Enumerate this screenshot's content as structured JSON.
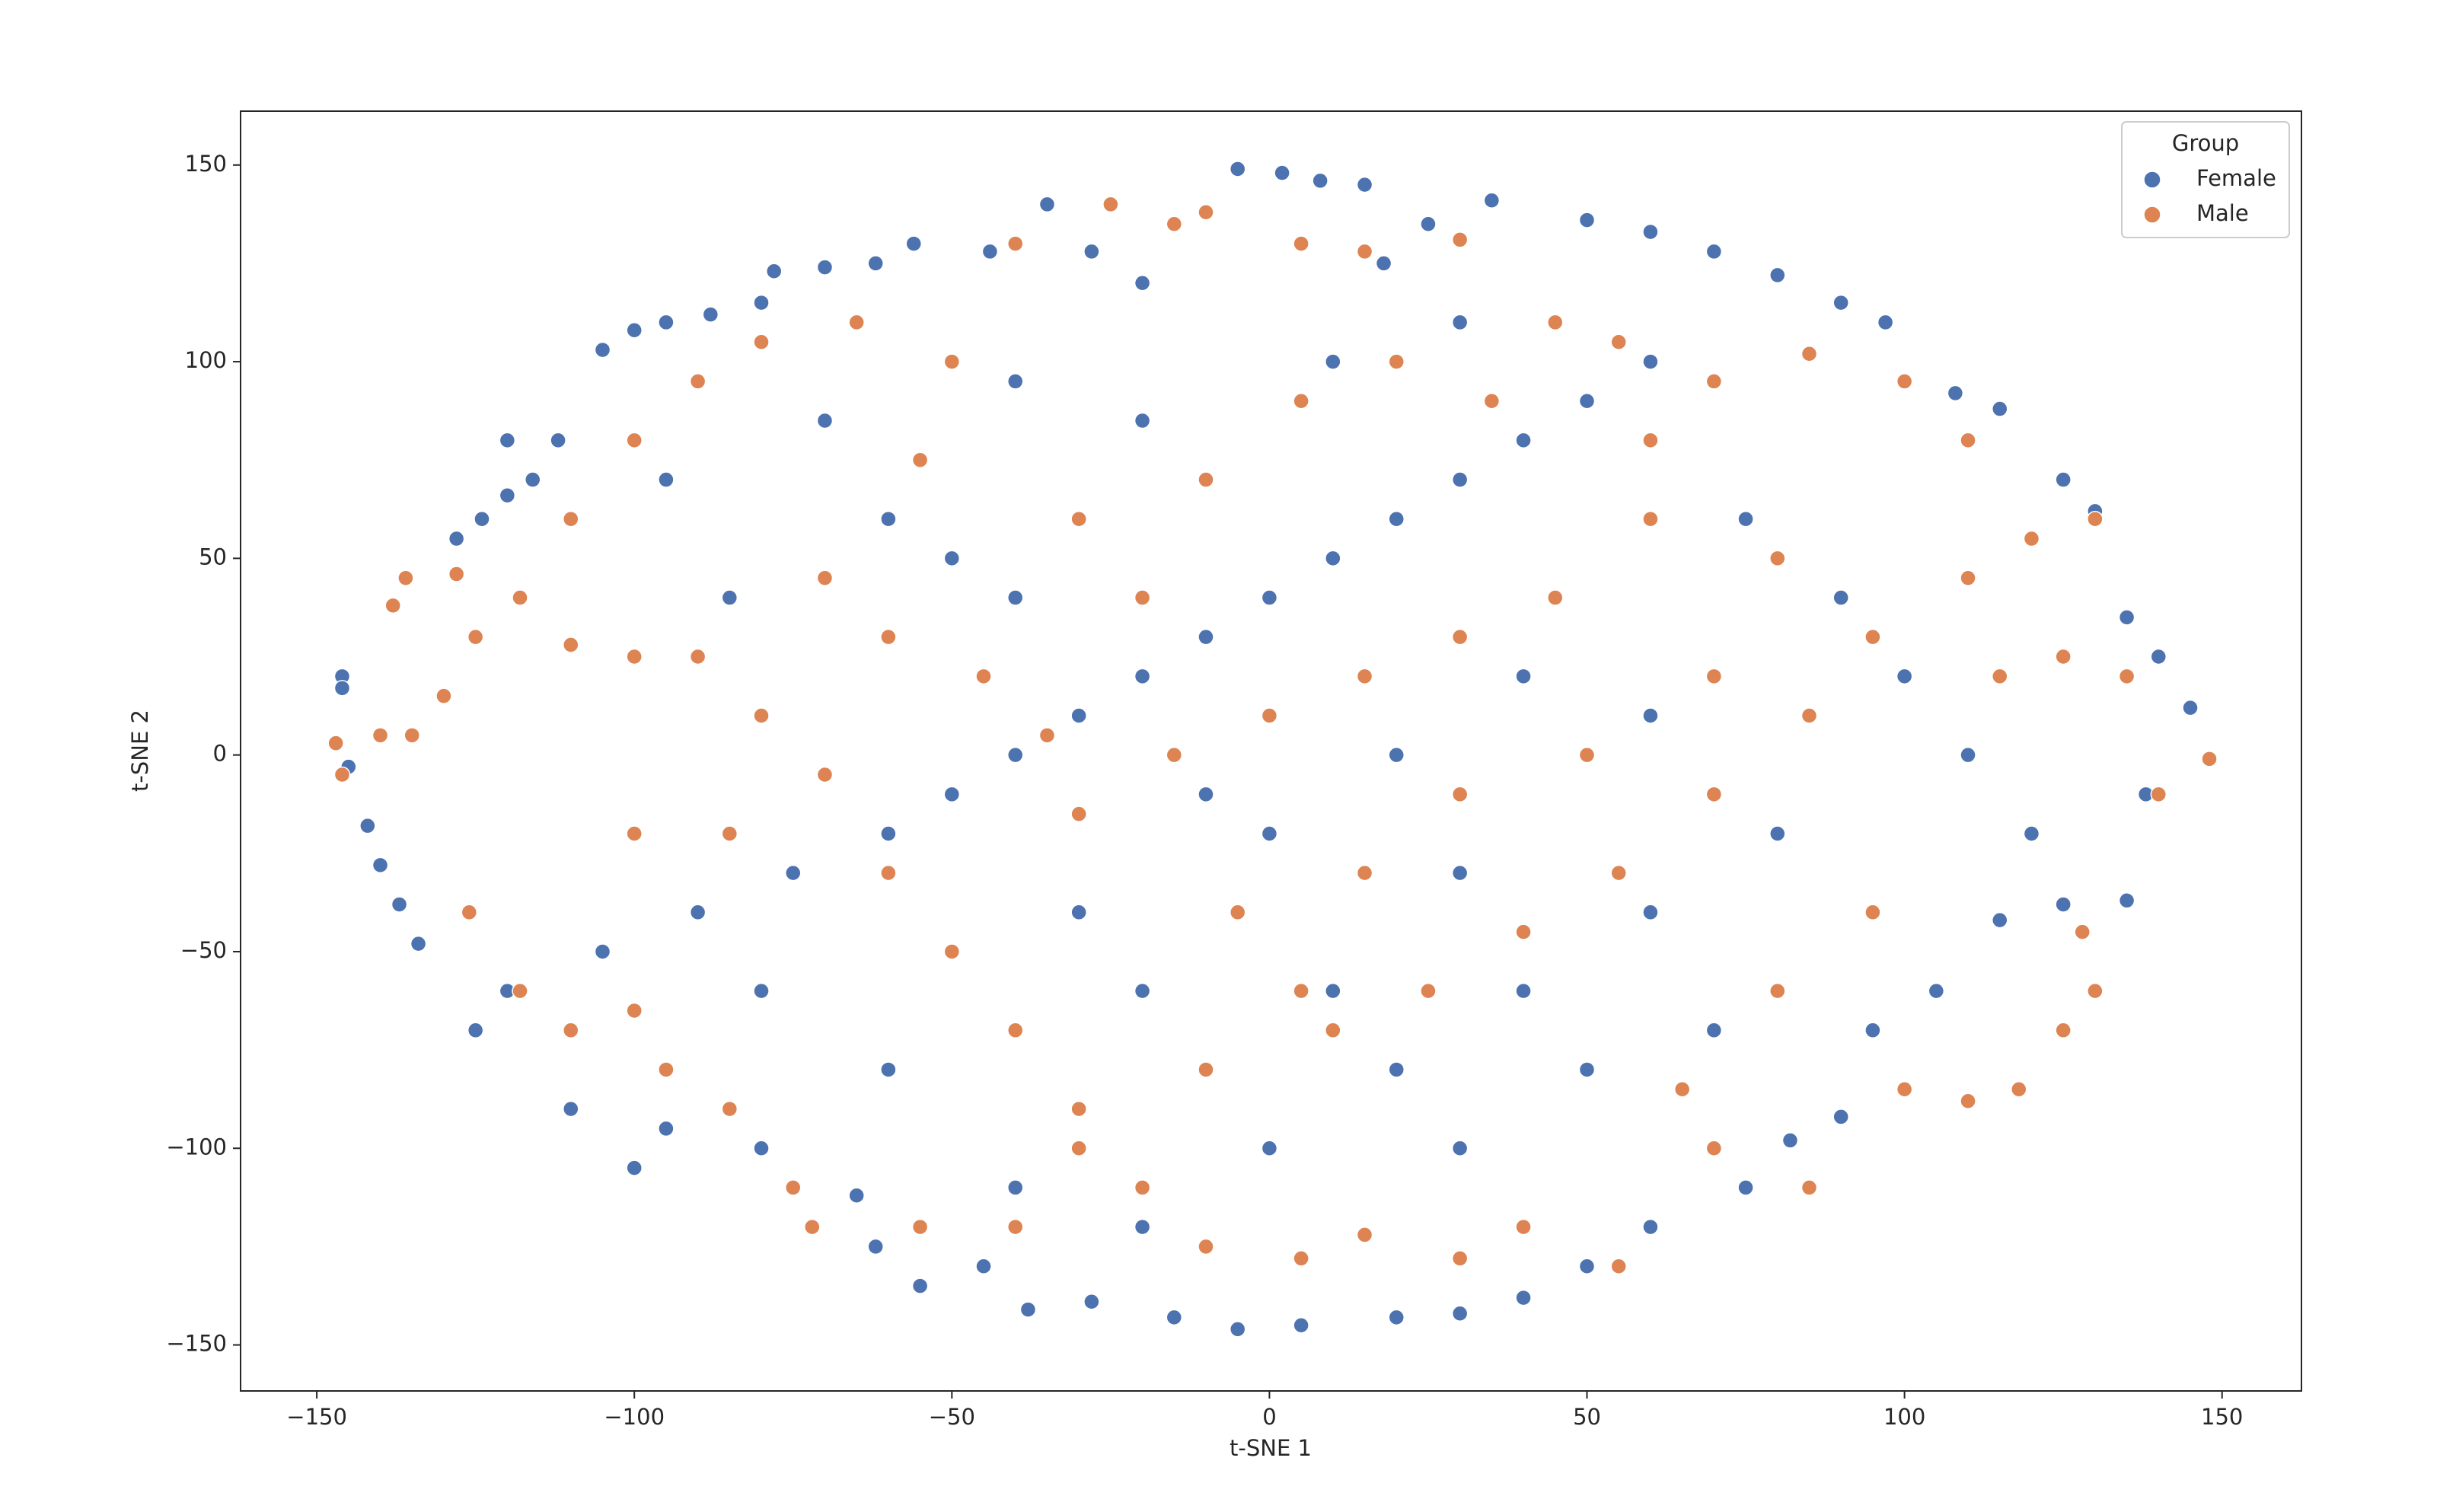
{
  "chart_data": {
    "type": "scatter",
    "x_label": "t-SNE 1",
    "y_label": "t-SNE 2",
    "xlim": [
      -162,
      162.5
    ],
    "ylim": [
      -161.7,
      163.7
    ],
    "xticks": [
      {
        "value": -150,
        "label": "−150"
      },
      {
        "value": -100,
        "label": "−100"
      },
      {
        "value": -50,
        "label": "−50"
      },
      0,
      50,
      100,
      150
    ],
    "yticks": [
      {
        "value": -150,
        "label": "−150"
      },
      {
        "value": -100,
        "label": "−100"
      },
      {
        "value": -50,
        "label": "−50"
      },
      0,
      50,
      100,
      150
    ],
    "legend_title": "Group",
    "legend": "upper right",
    "grid": false,
    "series": [
      {
        "name": "Female",
        "color": "#4c72b0",
        "x": [
          -146,
          -146,
          -145,
          -142,
          -140,
          -137,
          -134,
          -128,
          -124,
          -120,
          -116,
          -112,
          -120,
          -105,
          -100,
          -95,
          -88,
          -80,
          -78,
          -70,
          -62,
          -56,
          -44,
          -35,
          -28,
          -20,
          -5,
          2,
          8,
          15,
          18,
          25,
          35,
          50,
          60,
          70,
          80,
          90,
          97,
          108,
          115,
          125,
          130,
          135,
          140,
          145,
          138,
          135,
          125,
          115,
          105,
          95,
          90,
          82,
          75,
          60,
          50,
          40,
          30,
          20,
          5,
          -5,
          -15,
          -28,
          -38,
          -45,
          -55,
          -62,
          -65,
          -80,
          -95,
          -100,
          -110,
          -125,
          -120,
          -105,
          -90,
          -75,
          -60,
          -50,
          -40,
          -30,
          -20,
          -10,
          0,
          10,
          20,
          30,
          40,
          50,
          -60,
          -50,
          -40,
          -85,
          -95,
          -70,
          -40,
          -20,
          10,
          30,
          60,
          75,
          90,
          100,
          110,
          120,
          80,
          60,
          40,
          20,
          0,
          -20,
          -40,
          -60,
          -80,
          -20,
          0,
          20,
          40,
          60,
          30,
          10,
          -10,
          -30,
          50,
          30,
          70
        ],
        "values": [
          20,
          17,
          -3,
          -18,
          -28,
          -38,
          -48,
          55,
          60,
          66,
          70,
          80,
          80,
          103,
          108,
          110,
          112,
          115,
          123,
          124,
          125,
          130,
          128,
          140,
          128,
          120,
          149,
          148,
          146,
          145,
          125,
          135,
          141,
          136,
          133,
          128,
          122,
          115,
          110,
          92,
          88,
          70,
          62,
          35,
          25,
          12,
          -10,
          -37,
          -38,
          -42,
          -60,
          -70,
          -92,
          -98,
          -110,
          -120,
          -130,
          -138,
          -142,
          -143,
          -145,
          -146,
          -143,
          -139,
          -141,
          -130,
          -135,
          -125,
          -112,
          -100,
          -95,
          -105,
          -90,
          -70,
          -60,
          -50,
          -40,
          -30,
          -20,
          -10,
          0,
          10,
          20,
          30,
          40,
          50,
          60,
          70,
          80,
          90,
          60,
          50,
          40,
          40,
          70,
          85,
          95,
          85,
          100,
          110,
          100,
          60,
          40,
          20,
          0,
          -20,
          -20,
          -40,
          -60,
          -80,
          -100,
          -120,
          -110,
          -80,
          -60,
          -60,
          -20,
          0,
          20,
          10,
          -30,
          -60,
          -10,
          -40,
          -80,
          -100,
          -70
        ]
      },
      {
        "name": "Male",
        "color": "#dd8452",
        "x": [
          -147,
          -140,
          -135,
          -146,
          -138,
          -136,
          -128,
          -125,
          -130,
          -126,
          -118,
          -110,
          -100,
          -95,
          -85,
          -75,
          -72,
          -55,
          -40,
          -30,
          -20,
          -10,
          5,
          15,
          30,
          40,
          55,
          70,
          85,
          100,
          110,
          118,
          125,
          130,
          128,
          140,
          148,
          135,
          125,
          115,
          110,
          120,
          130,
          110,
          100,
          85,
          70,
          55,
          45,
          30,
          15,
          5,
          -10,
          -15,
          -25,
          -40,
          -50,
          -65,
          -80,
          -90,
          -100,
          -110,
          -118,
          -110,
          -100,
          -90,
          -80,
          -70,
          -60,
          -50,
          -40,
          -30,
          -10,
          10,
          25,
          40,
          55,
          70,
          85,
          95,
          80,
          60,
          45,
          30,
          15,
          0,
          -15,
          -30,
          -45,
          -60,
          -70,
          -55,
          -30,
          -10,
          5,
          20,
          35,
          60,
          -5,
          15,
          30,
          50,
          70,
          -20,
          -35,
          5,
          -85,
          -100,
          95,
          80,
          65
        ],
        "values": [
          3,
          5,
          5,
          -5,
          38,
          45,
          46,
          30,
          15,
          -40,
          -60,
          -70,
          -65,
          -80,
          -90,
          -110,
          -120,
          -120,
          -120,
          -100,
          -110,
          -125,
          -128,
          -122,
          -128,
          -120,
          -130,
          -100,
          -110,
          -85,
          -88,
          -85,
          -70,
          -60,
          -45,
          -10,
          -1,
          20,
          25,
          20,
          45,
          55,
          60,
          80,
          95,
          102,
          95,
          105,
          110,
          131,
          128,
          130,
          138,
          135,
          140,
          130,
          100,
          110,
          105,
          95,
          80,
          60,
          40,
          28,
          25,
          25,
          10,
          -5,
          -30,
          -50,
          -70,
          -90,
          -80,
          -70,
          -60,
          -45,
          -30,
          -10,
          10,
          30,
          50,
          60,
          40,
          30,
          20,
          10,
          0,
          -15,
          20,
          30,
          45,
          75,
          60,
          70,
          90,
          100,
          90,
          80,
          -40,
          -30,
          -10,
          0,
          20,
          40,
          5,
          -60,
          -20,
          -20,
          -40,
          -60,
          -85
        ]
      }
    ]
  }
}
